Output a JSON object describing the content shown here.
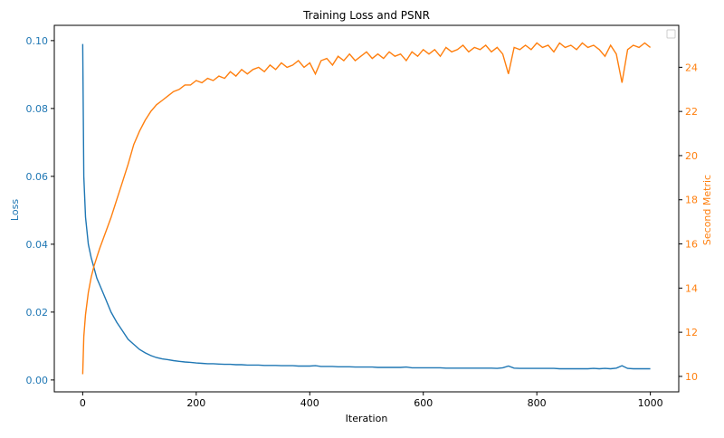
{
  "chart_data": {
    "type": "line",
    "title": "Training Loss and PSNR",
    "xlabel": "Iteration",
    "ylabel_left": "Loss",
    "ylabel_right": "Second Metric",
    "xlim": [
      -50,
      1050
    ],
    "ylim_left": [
      -0.0035,
      0.1045
    ],
    "ylim_right": [
      9.3,
      25.9
    ],
    "xticks": [
      0,
      200,
      400,
      600,
      800,
      1000
    ],
    "yticks_left": [
      "0.00",
      "0.02",
      "0.04",
      "0.06",
      "0.08",
      "0.10"
    ],
    "yticks_right": [
      10,
      12,
      14,
      16,
      18,
      20,
      22,
      24
    ],
    "grid": false,
    "legend": {
      "placement": "top-right",
      "entries": []
    },
    "colors": {
      "loss": "#1f77b4",
      "metric": "#ff7f0e"
    },
    "x": [
      0,
      2,
      5,
      10,
      15,
      20,
      25,
      30,
      40,
      50,
      60,
      70,
      80,
      90,
      100,
      110,
      120,
      130,
      140,
      150,
      160,
      170,
      180,
      190,
      200,
      210,
      220,
      230,
      240,
      250,
      260,
      270,
      280,
      290,
      300,
      310,
      320,
      330,
      340,
      350,
      360,
      370,
      380,
      390,
      400,
      410,
      420,
      430,
      440,
      450,
      460,
      470,
      480,
      490,
      500,
      510,
      520,
      530,
      540,
      550,
      560,
      570,
      580,
      590,
      600,
      610,
      620,
      630,
      640,
      650,
      660,
      670,
      680,
      690,
      700,
      710,
      720,
      730,
      740,
      750,
      760,
      770,
      780,
      790,
      800,
      810,
      820,
      830,
      840,
      850,
      860,
      870,
      880,
      890,
      900,
      910,
      920,
      930,
      940,
      950,
      960,
      970,
      980,
      990,
      1000
    ],
    "series": [
      {
        "axis": "left",
        "values": [
          0.099,
          0.06,
          0.048,
          0.04,
          0.036,
          0.033,
          0.03,
          0.028,
          0.024,
          0.02,
          0.017,
          0.0145,
          0.012,
          0.0105,
          0.009,
          0.008,
          0.0072,
          0.0066,
          0.0062,
          0.006,
          0.0057,
          0.0055,
          0.0053,
          0.0052,
          0.005,
          0.0049,
          0.0048,
          0.0048,
          0.0047,
          0.0046,
          0.0046,
          0.0045,
          0.0045,
          0.0044,
          0.0044,
          0.0044,
          0.0043,
          0.0043,
          0.0043,
          0.0042,
          0.0042,
          0.0042,
          0.0041,
          0.0041,
          0.0041,
          0.0042,
          0.004,
          0.004,
          0.004,
          0.0039,
          0.0039,
          0.0039,
          0.0038,
          0.0038,
          0.0038,
          0.0038,
          0.0037,
          0.0037,
          0.0037,
          0.0037,
          0.0037,
          0.0038,
          0.0036,
          0.0036,
          0.0036,
          0.0036,
          0.0036,
          0.0036,
          0.0035,
          0.0035,
          0.0035,
          0.0035,
          0.0035,
          0.0035,
          0.0035,
          0.0035,
          0.0035,
          0.0034,
          0.0036,
          0.0041,
          0.0035,
          0.0034,
          0.0034,
          0.0034,
          0.0034,
          0.0034,
          0.0034,
          0.0034,
          0.0033,
          0.0033,
          0.0033,
          0.0033,
          0.0033,
          0.0033,
          0.0034,
          0.0033,
          0.0034,
          0.0033,
          0.0035,
          0.0042,
          0.0034,
          0.0033,
          0.0033,
          0.0033,
          0.0033
        ]
      },
      {
        "axis": "right",
        "values": [
          10.1,
          11.8,
          12.8,
          13.8,
          14.5,
          15.0,
          15.4,
          15.8,
          16.5,
          17.2,
          18.0,
          18.8,
          19.6,
          20.5,
          21.1,
          21.6,
          22.0,
          22.3,
          22.5,
          22.7,
          22.9,
          23.0,
          23.2,
          23.2,
          23.4,
          23.3,
          23.5,
          23.4,
          23.6,
          23.5,
          23.8,
          23.6,
          23.9,
          23.7,
          23.9,
          24.0,
          23.8,
          24.1,
          23.9,
          24.2,
          24.0,
          24.1,
          24.3,
          24.0,
          24.2,
          23.7,
          24.3,
          24.4,
          24.1,
          24.5,
          24.3,
          24.6,
          24.3,
          24.5,
          24.7,
          24.4,
          24.6,
          24.4,
          24.7,
          24.5,
          24.6,
          24.3,
          24.7,
          24.5,
          24.8,
          24.6,
          24.8,
          24.5,
          24.9,
          24.7,
          24.8,
          25.0,
          24.7,
          24.9,
          24.8,
          25.0,
          24.7,
          24.9,
          24.6,
          23.7,
          24.9,
          24.8,
          25.0,
          24.8,
          25.1,
          24.9,
          25.0,
          24.7,
          25.1,
          24.9,
          25.0,
          24.8,
          25.1,
          24.9,
          25.0,
          24.8,
          24.5,
          25.0,
          24.6,
          23.3,
          24.8,
          25.0,
          24.9,
          25.1,
          24.9
        ]
      }
    ]
  }
}
